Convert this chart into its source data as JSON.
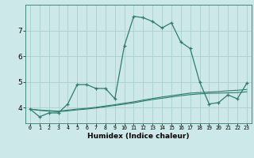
{
  "xlabel": "Humidex (Indice chaleur)",
  "x_values": [
    0,
    1,
    2,
    3,
    4,
    5,
    6,
    7,
    8,
    9,
    10,
    11,
    12,
    13,
    14,
    15,
    16,
    17,
    18,
    19,
    20,
    21,
    22,
    23
  ],
  "line1_y": [
    3.95,
    3.65,
    3.8,
    3.8,
    4.15,
    4.9,
    4.9,
    4.75,
    4.75,
    4.35,
    6.4,
    7.55,
    7.5,
    7.35,
    7.1,
    7.3,
    6.55,
    6.3,
    5.0,
    4.15,
    4.2,
    4.5,
    4.35,
    4.95
  ],
  "line2_y": [
    3.95,
    3.9,
    3.87,
    3.85,
    3.88,
    3.92,
    3.95,
    3.99,
    4.04,
    4.09,
    4.14,
    4.19,
    4.26,
    4.32,
    4.37,
    4.42,
    4.47,
    4.51,
    4.54,
    4.56,
    4.57,
    4.58,
    4.59,
    4.62
  ],
  "line3_y": [
    3.95,
    3.91,
    3.89,
    3.87,
    3.91,
    3.95,
    3.98,
    4.02,
    4.07,
    4.12,
    4.18,
    4.23,
    4.3,
    4.36,
    4.42,
    4.47,
    4.52,
    4.57,
    4.59,
    4.61,
    4.63,
    4.66,
    4.68,
    4.71
  ],
  "line_color": "#2e7d6e",
  "bg_color": "#cce8e8",
  "grid_color": "#aacfcf",
  "ylim": [
    3.4,
    8.0
  ],
  "yticks": [
    4,
    5,
    6,
    7
  ],
  "xlim": [
    -0.5,
    23.5
  ]
}
